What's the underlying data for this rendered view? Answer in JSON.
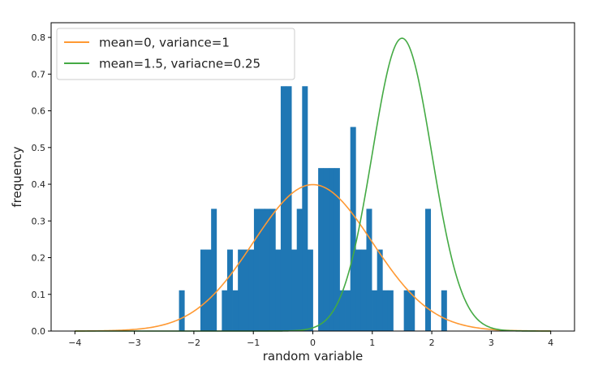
{
  "chart_data": {
    "type": "bar",
    "xlabel": "random variable",
    "ylabel": "frequency",
    "xlim": [
      -4.4,
      4.4
    ],
    "ylim": [
      0,
      0.84
    ],
    "xticks": [
      "−4",
      "−3",
      "−2",
      "−1",
      "0",
      "1",
      "2",
      "3",
      "4"
    ],
    "yticks": [
      "0.0",
      "0.1",
      "0.2",
      "0.3",
      "0.4",
      "0.5",
      "0.6",
      "0.7",
      "0.8"
    ],
    "legend_position": "top-left",
    "histogram": {
      "color": "#1f77b4",
      "bin_width": 0.09,
      "bins": [
        [
          -2.25,
          0.111
        ],
        [
          -1.89,
          0.222
        ],
        [
          -1.8,
          0.222
        ],
        [
          -1.71,
          0.333
        ],
        [
          -1.53,
          0.111
        ],
        [
          -1.44,
          0.222
        ],
        [
          -1.35,
          0.111
        ],
        [
          -1.26,
          0.222
        ],
        [
          -1.17,
          0.222
        ],
        [
          -1.08,
          0.222
        ],
        [
          -0.99,
          0.333
        ],
        [
          -0.9,
          0.333
        ],
        [
          -0.81,
          0.333
        ],
        [
          -0.72,
          0.333
        ],
        [
          -0.63,
          0.222
        ],
        [
          -0.54,
          0.667
        ],
        [
          -0.45,
          0.667
        ],
        [
          -0.36,
          0.222
        ],
        [
          -0.27,
          0.333
        ],
        [
          -0.18,
          0.667
        ],
        [
          -0.09,
          0.222
        ],
        [
          0.09,
          0.444
        ],
        [
          0.18,
          0.444
        ],
        [
          0.27,
          0.444
        ],
        [
          0.36,
          0.444
        ],
        [
          0.45,
          0.111
        ],
        [
          0.54,
          0.111
        ],
        [
          0.63,
          0.556
        ],
        [
          0.72,
          0.222
        ],
        [
          0.81,
          0.222
        ],
        [
          0.9,
          0.333
        ],
        [
          0.99,
          0.111
        ],
        [
          1.08,
          0.222
        ],
        [
          1.17,
          0.111
        ],
        [
          1.26,
          0.111
        ],
        [
          1.53,
          0.111
        ],
        [
          1.62,
          0.111
        ],
        [
          1.89,
          0.333
        ],
        [
          2.16,
          0.111
        ]
      ]
    },
    "series": [
      {
        "name": "mean=0, variance=1",
        "color": "#ff9933",
        "mean": 0,
        "variance": 1
      },
      {
        "name": "mean=1.5, variacne=0.25",
        "color": "#44aa44",
        "mean": 1.5,
        "variance": 0.25
      }
    ]
  }
}
